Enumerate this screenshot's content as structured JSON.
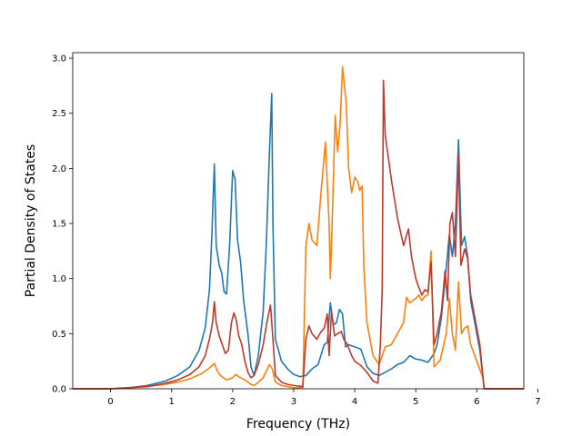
{
  "chart_data": {
    "type": "line",
    "title": "",
    "xlabel": "Frequency (THz)",
    "ylabel": "Partial Density of States",
    "xlim": [
      -0.62,
      6.77
    ],
    "ylim": [
      0.0,
      3.05
    ],
    "xticks": [
      "0",
      "1",
      "2",
      "3",
      "4",
      "5",
      "6",
      "7"
    ],
    "yticks": [
      "0.0",
      "0.5",
      "1.0",
      "1.5",
      "2.0",
      "2.5",
      "3.0"
    ],
    "grid": false,
    "legend": "none",
    "series": [
      {
        "color": "#1f77b4",
        "points": [
          [
            -0.62,
            0
          ],
          [
            0,
            0
          ],
          [
            0.3,
            0.01
          ],
          [
            0.6,
            0.03
          ],
          [
            0.9,
            0.07
          ],
          [
            1.1,
            0.12
          ],
          [
            1.3,
            0.2
          ],
          [
            1.45,
            0.35
          ],
          [
            1.55,
            0.55
          ],
          [
            1.62,
            0.9
          ],
          [
            1.66,
            1.4
          ],
          [
            1.7,
            2.04
          ],
          [
            1.73,
            1.3
          ],
          [
            1.78,
            1.12
          ],
          [
            1.82,
            1.05
          ],
          [
            1.86,
            0.88
          ],
          [
            1.9,
            0.86
          ],
          [
            1.95,
            1.3
          ],
          [
            2.0,
            1.98
          ],
          [
            2.04,
            1.9
          ],
          [
            2.08,
            1.35
          ],
          [
            2.13,
            1.15
          ],
          [
            2.18,
            0.8
          ],
          [
            2.25,
            0.5
          ],
          [
            2.3,
            0.2
          ],
          [
            2.35,
            0.12
          ],
          [
            2.42,
            0.3
          ],
          [
            2.5,
            0.7
          ],
          [
            2.55,
            1.3
          ],
          [
            2.6,
            2.1
          ],
          [
            2.64,
            2.68
          ],
          [
            2.66,
            1.5
          ],
          [
            2.7,
            0.45
          ],
          [
            2.8,
            0.25
          ],
          [
            2.9,
            0.18
          ],
          [
            3.0,
            0.13
          ],
          [
            3.1,
            0.11
          ],
          [
            3.2,
            0.12
          ],
          [
            3.3,
            0.18
          ],
          [
            3.4,
            0.22
          ],
          [
            3.5,
            0.4
          ],
          [
            3.55,
            0.42
          ],
          [
            3.6,
            0.78
          ],
          [
            3.65,
            0.58
          ],
          [
            3.7,
            0.6
          ],
          [
            3.75,
            0.72
          ],
          [
            3.8,
            0.68
          ],
          [
            3.85,
            0.38
          ],
          [
            3.9,
            0.4
          ],
          [
            4.0,
            0.38
          ],
          [
            4.1,
            0.36
          ],
          [
            4.2,
            0.2
          ],
          [
            4.3,
            0.14
          ],
          [
            4.4,
            0.12
          ],
          [
            4.5,
            0.15
          ],
          [
            4.6,
            0.18
          ],
          [
            4.7,
            0.22
          ],
          [
            4.8,
            0.24
          ],
          [
            4.9,
            0.3
          ],
          [
            5.0,
            0.27
          ],
          [
            5.1,
            0.26
          ],
          [
            5.2,
            0.24
          ],
          [
            5.3,
            0.32
          ],
          [
            5.35,
            0.4
          ],
          [
            5.42,
            0.65
          ],
          [
            5.5,
            1.1
          ],
          [
            5.55,
            1.4
          ],
          [
            5.6,
            1.2
          ],
          [
            5.65,
            1.5
          ],
          [
            5.7,
            2.26
          ],
          [
            5.75,
            1.3
          ],
          [
            5.8,
            1.38
          ],
          [
            5.85,
            1.2
          ],
          [
            5.9,
            0.8
          ],
          [
            6.0,
            0.5
          ],
          [
            6.05,
            0.35
          ],
          [
            6.12,
            0
          ],
          [
            6.77,
            0
          ]
        ]
      },
      {
        "color": "#ff7f0e",
        "points": [
          [
            -0.62,
            0
          ],
          [
            0,
            0
          ],
          [
            0.3,
            0.01
          ],
          [
            0.6,
            0.02
          ],
          [
            0.9,
            0.04
          ],
          [
            1.1,
            0.06
          ],
          [
            1.3,
            0.09
          ],
          [
            1.5,
            0.14
          ],
          [
            1.6,
            0.18
          ],
          [
            1.7,
            0.23
          ],
          [
            1.75,
            0.16
          ],
          [
            1.8,
            0.12
          ],
          [
            1.9,
            0.08
          ],
          [
            2.0,
            0.1
          ],
          [
            2.05,
            0.13
          ],
          [
            2.1,
            0.11
          ],
          [
            2.2,
            0.08
          ],
          [
            2.3,
            0.04
          ],
          [
            2.35,
            0.03
          ],
          [
            2.4,
            0.05
          ],
          [
            2.5,
            0.1
          ],
          [
            2.6,
            0.22
          ],
          [
            2.65,
            0.18
          ],
          [
            2.7,
            0.06
          ],
          [
            2.8,
            0.03
          ],
          [
            2.9,
            0.02
          ],
          [
            3.0,
            0.01
          ],
          [
            3.15,
            0.01
          ],
          [
            3.2,
            1.3
          ],
          [
            3.25,
            1.5
          ],
          [
            3.3,
            1.35
          ],
          [
            3.38,
            1.3
          ],
          [
            3.45,
            1.8
          ],
          [
            3.52,
            2.24
          ],
          [
            3.58,
            1.5
          ],
          [
            3.6,
            1.0
          ],
          [
            3.63,
            1.5
          ],
          [
            3.68,
            2.48
          ],
          [
            3.72,
            2.15
          ],
          [
            3.76,
            2.4
          ],
          [
            3.8,
            2.92
          ],
          [
            3.86,
            2.6
          ],
          [
            3.9,
            2.0
          ],
          [
            3.95,
            1.78
          ],
          [
            4.0,
            1.92
          ],
          [
            4.05,
            1.88
          ],
          [
            4.08,
            1.8
          ],
          [
            4.12,
            1.84
          ],
          [
            4.15,
            1.1
          ],
          [
            4.2,
            0.6
          ],
          [
            4.3,
            0.3
          ],
          [
            4.4,
            0.22
          ],
          [
            4.5,
            0.38
          ],
          [
            4.6,
            0.4
          ],
          [
            4.7,
            0.5
          ],
          [
            4.75,
            0.55
          ],
          [
            4.8,
            0.6
          ],
          [
            4.85,
            0.83
          ],
          [
            4.9,
            0.78
          ],
          [
            5.0,
            0.82
          ],
          [
            5.05,
            0.85
          ],
          [
            5.1,
            0.8
          ],
          [
            5.15,
            0.84
          ],
          [
            5.2,
            0.85
          ],
          [
            5.25,
            1.25
          ],
          [
            5.3,
            0.2
          ],
          [
            5.4,
            0.26
          ],
          [
            5.5,
            0.5
          ],
          [
            5.55,
            0.82
          ],
          [
            5.6,
            0.5
          ],
          [
            5.65,
            0.35
          ],
          [
            5.7,
            0.97
          ],
          [
            5.75,
            0.5
          ],
          [
            5.8,
            0.55
          ],
          [
            5.85,
            0.57
          ],
          [
            5.9,
            0.4
          ],
          [
            6.0,
            0.25
          ],
          [
            6.1,
            0.1
          ],
          [
            6.12,
            0
          ],
          [
            6.77,
            0
          ]
        ]
      },
      {
        "color": "#c0392b",
        "points": [
          [
            -0.62,
            0
          ],
          [
            0,
            0
          ],
          [
            0.3,
            0.01
          ],
          [
            0.6,
            0.02
          ],
          [
            0.9,
            0.05
          ],
          [
            1.1,
            0.08
          ],
          [
            1.3,
            0.13
          ],
          [
            1.45,
            0.2
          ],
          [
            1.55,
            0.3
          ],
          [
            1.62,
            0.45
          ],
          [
            1.67,
            0.6
          ],
          [
            1.7,
            0.79
          ],
          [
            1.73,
            0.6
          ],
          [
            1.78,
            0.48
          ],
          [
            1.83,
            0.4
          ],
          [
            1.88,
            0.32
          ],
          [
            1.93,
            0.35
          ],
          [
            1.98,
            0.6
          ],
          [
            2.02,
            0.69
          ],
          [
            2.06,
            0.62
          ],
          [
            2.1,
            0.48
          ],
          [
            2.15,
            0.4
          ],
          [
            2.2,
            0.25
          ],
          [
            2.25,
            0.15
          ],
          [
            2.3,
            0.1
          ],
          [
            2.35,
            0.12
          ],
          [
            2.42,
            0.22
          ],
          [
            2.5,
            0.4
          ],
          [
            2.56,
            0.6
          ],
          [
            2.62,
            0.76
          ],
          [
            2.66,
            0.45
          ],
          [
            2.7,
            0.12
          ],
          [
            2.8,
            0.06
          ],
          [
            2.9,
            0.04
          ],
          [
            3.0,
            0.03
          ],
          [
            3.15,
            0.02
          ],
          [
            3.2,
            0.45
          ],
          [
            3.25,
            0.57
          ],
          [
            3.3,
            0.5
          ],
          [
            3.38,
            0.45
          ],
          [
            3.45,
            0.52
          ],
          [
            3.5,
            0.55
          ],
          [
            3.55,
            0.68
          ],
          [
            3.58,
            0.3
          ],
          [
            3.62,
            0.7
          ],
          [
            3.67,
            0.48
          ],
          [
            3.72,
            0.5
          ],
          [
            3.78,
            0.52
          ],
          [
            3.82,
            0.45
          ],
          [
            3.88,
            0.4
          ],
          [
            3.95,
            0.3
          ],
          [
            4.0,
            0.25
          ],
          [
            4.1,
            0.21
          ],
          [
            4.2,
            0.15
          ],
          [
            4.3,
            0.07
          ],
          [
            4.38,
            0.05
          ],
          [
            4.42,
            0.4
          ],
          [
            4.45,
            0.9
          ],
          [
            4.47,
            2.8
          ],
          [
            4.5,
            2.3
          ],
          [
            4.6,
            1.9
          ],
          [
            4.7,
            1.55
          ],
          [
            4.8,
            1.3
          ],
          [
            4.88,
            1.45
          ],
          [
            4.93,
            1.2
          ],
          [
            5.0,
            1.0
          ],
          [
            5.05,
            0.92
          ],
          [
            5.1,
            0.85
          ],
          [
            5.15,
            0.9
          ],
          [
            5.2,
            0.88
          ],
          [
            5.25,
            1.15
          ],
          [
            5.3,
            0.4
          ],
          [
            5.35,
            0.5
          ],
          [
            5.42,
            0.7
          ],
          [
            5.48,
            1.07
          ],
          [
            5.52,
            0.8
          ],
          [
            5.56,
            1.5
          ],
          [
            5.6,
            1.6
          ],
          [
            5.65,
            1.2
          ],
          [
            5.7,
            2.12
          ],
          [
            5.74,
            1.12
          ],
          [
            5.8,
            1.27
          ],
          [
            5.85,
            1.18
          ],
          [
            5.9,
            0.85
          ],
          [
            6.0,
            0.55
          ],
          [
            6.05,
            0.4
          ],
          [
            6.12,
            0
          ],
          [
            6.77,
            0
          ]
        ]
      }
    ]
  }
}
